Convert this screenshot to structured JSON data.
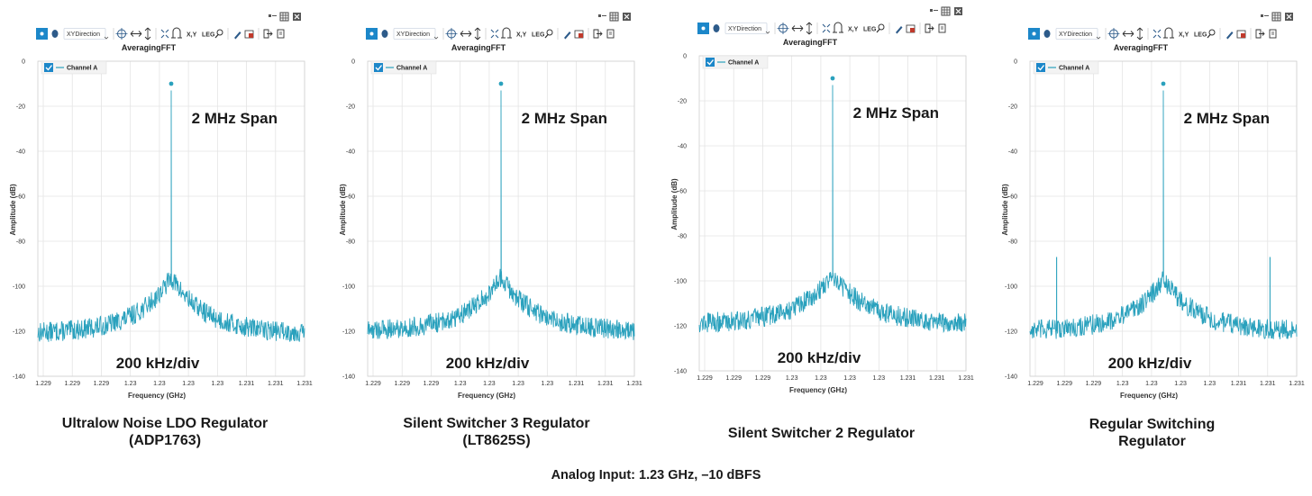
{
  "footer": "Analog Input: 1.23 GHz, –10 dBFS",
  "colors": {
    "trace": "#2aa1bd",
    "grid": "#e4e4e4",
    "toolbar_active": "#1c87c9"
  },
  "toolbar": {
    "direction_label": "XYDirection",
    "xy_label": "X,Y",
    "leg_label": "LEG",
    "icons": [
      "pointer-icon",
      "hand-icon",
      "crosshair-icon",
      "pan-horizontal-icon",
      "pan-vertical-icon",
      "fit-icon",
      "magnet-icon",
      "zoom-icon",
      "pen-icon",
      "fill-icon",
      "export-icon",
      "copy-icon",
      "legend-icon",
      "grid-icon",
      "settings-icon"
    ]
  },
  "chart_data": [
    {
      "type": "line",
      "title": "AveragingFFT",
      "xlabel": "Frequency (GHz)",
      "ylabel": "Amplitude (dB)",
      "x_tick_labels": [
        "1.229",
        "1.229",
        "1.229",
        "1.23",
        "1.23",
        "1.23",
        "1.23",
        "1.231",
        "1.231",
        "1.231"
      ],
      "y_ticks": [
        "0",
        "-20",
        "-40",
        "-60",
        "-80",
        "-100",
        "-120",
        "-140"
      ],
      "xlim": [
        1.229,
        1.231
      ],
      "ylim": [
        -140,
        0
      ],
      "legend": [
        "Channel A"
      ],
      "annotations": [
        "2 MHz Span",
        "200 kHz/div"
      ],
      "caption": [
        "Ultralow Noise LDO Regulator",
        "(ADP1763)"
      ],
      "series": [
        {
          "name": "Channel A",
          "carrier_freq": 1.23,
          "carrier_db": -10,
          "noise_floor_db": -121,
          "skirt_peak_db": -96,
          "spurs": []
        }
      ]
    },
    {
      "type": "line",
      "title": "AveragingFFT",
      "xlabel": "Frequency (GHz)",
      "ylabel": "Amplitude (dB)",
      "x_tick_labels": [
        "1.229",
        "1.229",
        "1.229",
        "1.23",
        "1.23",
        "1.23",
        "1.23",
        "1.231",
        "1.231",
        "1.231"
      ],
      "y_ticks": [
        "0",
        "-20",
        "-40",
        "-60",
        "-80",
        "-100",
        "-120",
        "-140"
      ],
      "xlim": [
        1.229,
        1.231
      ],
      "ylim": [
        -140,
        0
      ],
      "legend": [
        "Channel A"
      ],
      "annotations": [
        "2 MHz Span",
        "200 kHz/div"
      ],
      "caption": [
        "Silent Switcher 3 Regulator",
        "(LT8625S)"
      ],
      "series": [
        {
          "name": "Channel A",
          "carrier_freq": 1.23,
          "carrier_db": -10,
          "noise_floor_db": -120,
          "skirt_peak_db": -96,
          "spurs": []
        }
      ]
    },
    {
      "type": "line",
      "title": "AveragingFFT",
      "xlabel": "Frequency (GHz)",
      "ylabel": "Amplitude (dB)",
      "x_tick_labels": [
        "1.229",
        "1.229",
        "1.229",
        "1.23",
        "1.23",
        "1.23",
        "1.23",
        "1.231",
        "1.231",
        "1.231"
      ],
      "y_ticks": [
        "0",
        "-20",
        "-40",
        "-60",
        "-80",
        "-100",
        "-120",
        "-140"
      ],
      "xlim": [
        1.229,
        1.231
      ],
      "ylim": [
        -140,
        0
      ],
      "legend": [
        "Channel A"
      ],
      "annotations": [
        "2 MHz Span",
        "200 kHz/div"
      ],
      "caption": [
        "Silent Switcher 2 Regulator"
      ],
      "series": [
        {
          "name": "Channel A",
          "carrier_freq": 1.23,
          "carrier_db": -10,
          "noise_floor_db": -119,
          "skirt_peak_db": -97,
          "spurs": []
        }
      ]
    },
    {
      "type": "line",
      "title": "AveragingFFT",
      "xlabel": "Frequency (GHz)",
      "ylabel": "Amplitude (dB)",
      "x_tick_labels": [
        "1.229",
        "1.229",
        "1.229",
        "1.23",
        "1.23",
        "1.23",
        "1.23",
        "1.231",
        "1.231",
        "1.231"
      ],
      "y_ticks": [
        "0",
        "-20",
        "-40",
        "-60",
        "-80",
        "-100",
        "-120",
        "-140"
      ],
      "xlim": [
        1.229,
        1.231
      ],
      "ylim": [
        -140,
        0
      ],
      "legend": [
        "Channel A"
      ],
      "annotations": [
        "2 MHz Span",
        "200 kHz/div"
      ],
      "caption": [
        "Regular Switching",
        "Regulator"
      ],
      "series": [
        {
          "name": "Channel A",
          "carrier_freq": 1.23,
          "carrier_db": -10,
          "noise_floor_db": -120,
          "skirt_peak_db": -97,
          "spurs": [
            {
              "freq": 1.2292,
              "db": -87
            },
            {
              "freq": 1.2308,
              "db": -87
            }
          ]
        }
      ]
    }
  ]
}
